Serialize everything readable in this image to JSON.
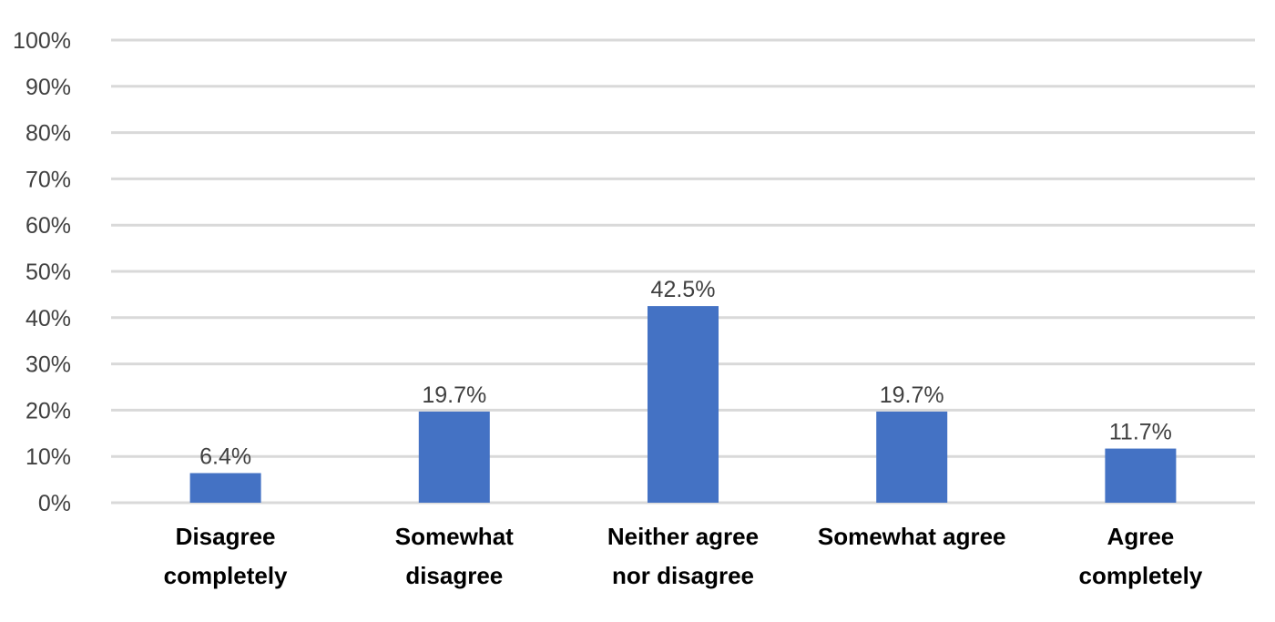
{
  "chart_data": {
    "type": "bar",
    "categories": [
      [
        "Disagree",
        "completely"
      ],
      [
        "Somewhat",
        "disagree"
      ],
      [
        "Neither agree",
        "nor disagree"
      ],
      [
        "Somewhat agree"
      ],
      [
        "Agree",
        "completely"
      ]
    ],
    "values": [
      6.4,
      19.7,
      42.5,
      19.7,
      11.7
    ],
    "data_labels": [
      "6.4%",
      "19.7%",
      "42.5%",
      "19.7%",
      "11.7%"
    ],
    "yticks": [
      0,
      10,
      20,
      30,
      40,
      50,
      60,
      70,
      80,
      90,
      100
    ],
    "ytick_labels": [
      "0%",
      "10%",
      "20%",
      "30%",
      "40%",
      "50%",
      "60%",
      "70%",
      "80%",
      "90%",
      "100%"
    ],
    "ylim": [
      0,
      100
    ],
    "title": "",
    "xlabel": "",
    "ylabel": "",
    "grid": true,
    "legend": "none",
    "colors": {
      "bar": "#4472C4",
      "grid": "#D9D9D9",
      "tick_text": "#404040",
      "category_text": "#000000"
    }
  }
}
